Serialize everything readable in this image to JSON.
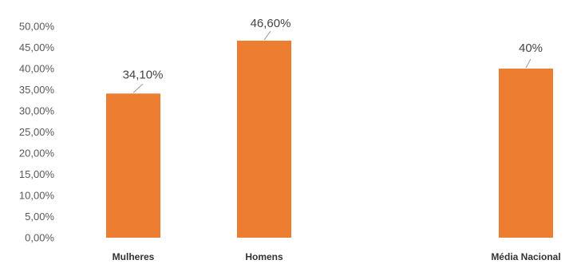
{
  "chart_data": {
    "type": "bar",
    "categories": [
      "Mulheres",
      "Homens",
      "Média Nacional"
    ],
    "values": [
      34.1,
      46.6,
      40
    ],
    "data_labels": [
      "34,10%",
      "46,60%",
      "40%"
    ],
    "ylim": [
      0,
      50
    ],
    "y_ticks": [
      {
        "value": 0,
        "label": "0,00%"
      },
      {
        "value": 5,
        "label": "5,00%"
      },
      {
        "value": 10,
        "label": "10,00%"
      },
      {
        "value": 15,
        "label": "15,00%"
      },
      {
        "value": 20,
        "label": "20,00%"
      },
      {
        "value": 25,
        "label": "25,00%"
      },
      {
        "value": 30,
        "label": "30,00%"
      },
      {
        "value": 35,
        "label": "35,00%"
      },
      {
        "value": 40,
        "label": "40,00%"
      },
      {
        "value": 45,
        "label": "45,00%"
      },
      {
        "value": 50,
        "label": "50,00%"
      }
    ],
    "grid": false,
    "legend": "none",
    "bar_color": "#ED7D31"
  }
}
